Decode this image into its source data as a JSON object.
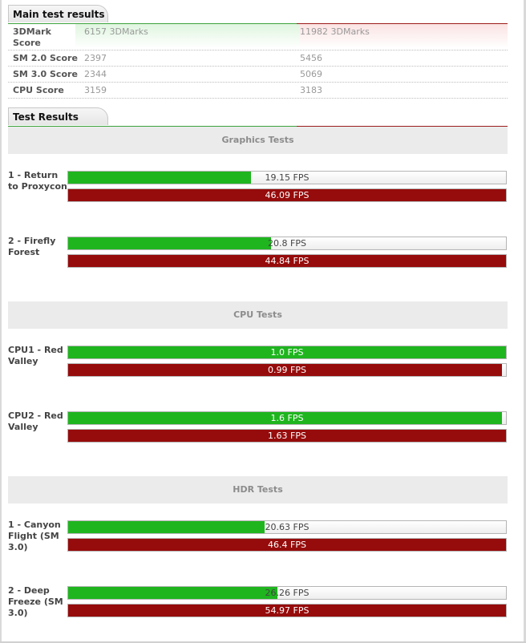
{
  "main_results": {
    "title": "Main test results",
    "rows": [
      {
        "label": "3DMark Score",
        "left": "6157 3DMarks",
        "right": "11982 3DMarks"
      },
      {
        "label": "SM 2.0 Score",
        "left": "2397",
        "right": "5456"
      },
      {
        "label": "SM 3.0 Score",
        "left": "2344",
        "right": "5069"
      },
      {
        "label": "CPU Score",
        "left": "3159",
        "right": "3183"
      }
    ]
  },
  "test_results": {
    "title": "Test Results",
    "sections": [
      {
        "title": "Graphics Tests",
        "tests": [
          {
            "label": "1 - Return to Proxycon",
            "green_text": "19.15 FPS",
            "green_fill": 0.418,
            "red_text": "46.09 FPS",
            "red_fill": 1.0
          },
          {
            "label": "2 - Firefly Forest",
            "green_text": "20.8 FPS",
            "green_fill": 0.464,
            "red_text": "44.84 FPS",
            "red_fill": 1.0
          }
        ]
      },
      {
        "title": "CPU Tests",
        "tests": [
          {
            "label": "CPU1 - Red Valley",
            "green_text": "1.0 FPS",
            "green_fill": 1.0,
            "red_text": "0.99 FPS",
            "red_fill": 0.99
          },
          {
            "label": "CPU2 - Red Valley",
            "green_text": "1.6 FPS",
            "green_fill": 0.99,
            "red_text": "1.63 FPS",
            "red_fill": 1.0
          }
        ]
      },
      {
        "title": "HDR Tests",
        "tests": [
          {
            "label": "1 - Canyon Flight (SM 3.0)",
            "green_text": "20.63 FPS",
            "green_fill": 0.448,
            "red_text": "46.4 FPS",
            "red_fill": 1.0
          },
          {
            "label": "2 - Deep Freeze (SM 3.0)",
            "green_text": "26.26 FPS",
            "green_fill": 0.478,
            "red_text": "54.97 FPS",
            "red_fill": 1.0
          }
        ]
      }
    ]
  },
  "colors": {
    "green": "#1fb51f",
    "red": "#960b0b"
  }
}
